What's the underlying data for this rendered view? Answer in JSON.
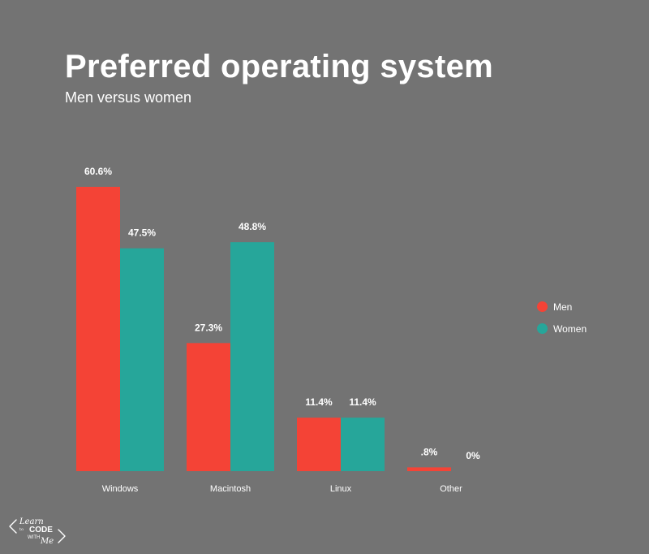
{
  "title": "Preferred operating system",
  "subtitle": "Men versus women",
  "chart_data": {
    "type": "bar",
    "categories": [
      "Windows",
      "Macintosh",
      "Linux",
      "Other"
    ],
    "series": [
      {
        "name": "Men",
        "values": [
          60.6,
          27.3,
          11.4,
          0.8
        ],
        "labels": [
          "60.6%",
          "27.3%",
          "11.4%",
          ".8%"
        ],
        "color": "#f44336"
      },
      {
        "name": "Women",
        "values": [
          47.5,
          48.8,
          11.4,
          0
        ],
        "labels": [
          "47.5%",
          "48.8%",
          "11.4%",
          "0%"
        ],
        "color": "#26a69a"
      }
    ],
    "ylim": [
      0,
      60.6
    ],
    "grid": false,
    "legend_position": "right"
  },
  "logo": {
    "line1": "Learn",
    "line2": "to",
    "line3": "CODE",
    "line4": "WITH",
    "line5": "Me"
  }
}
